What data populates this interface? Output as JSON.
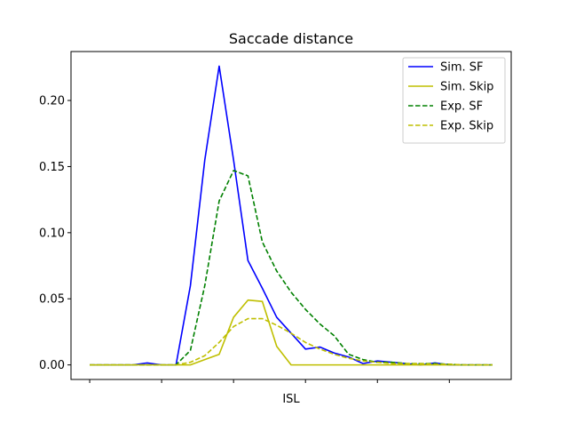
{
  "chart_data": {
    "type": "line",
    "title": "Saccade distance",
    "xlabel": "ISL",
    "ylabel": "",
    "x": [
      0,
      1,
      2,
      3,
      4,
      5,
      6,
      7,
      8,
      9,
      10,
      11,
      12,
      13,
      14,
      15,
      16,
      17,
      18,
      19,
      20,
      21,
      22,
      23,
      24,
      25,
      26,
      27,
      28
    ],
    "xlim": [
      -1.3,
      29.3
    ],
    "ylim": [
      -0.011,
      0.237
    ],
    "yticks": [
      0.0,
      0.05,
      0.1,
      0.15,
      0.2
    ],
    "ytick_labels": [
      "0.00",
      "0.05",
      "0.10",
      "0.15",
      "0.20"
    ],
    "xticks": [
      0,
      5,
      10,
      15,
      20,
      25
    ],
    "xtick_labels": [
      "",
      "",
      "",
      "",
      "",
      ""
    ],
    "grid": false,
    "legend": "top-right",
    "series": [
      {
        "name": "Sim. SF",
        "color": "#0000ff",
        "dash": "solid",
        "values": [
          0,
          0,
          0,
          0,
          0.0015,
          0,
          0,
          0.06,
          0.155,
          0.226,
          0.155,
          0.079,
          0.058,
          0.036,
          0.024,
          0.012,
          0.0135,
          0.009,
          0.006,
          0.001,
          0.003,
          0.002,
          0.001,
          0,
          0.0015,
          0,
          0,
          0,
          0
        ]
      },
      {
        "name": "Sim. Skip",
        "color": "#bfbf00",
        "dash": "solid",
        "values": [
          0,
          0,
          0,
          0,
          0,
          0,
          0,
          0,
          0.004,
          0.008,
          0.036,
          0.049,
          0.048,
          0.014,
          0,
          0,
          0,
          0,
          0,
          0,
          0,
          0,
          0,
          0,
          0,
          0,
          0,
          0,
          0
        ]
      },
      {
        "name": "Exp. SF",
        "color": "#008000",
        "dash": "dashed",
        "values": [
          0,
          0,
          0,
          0,
          0,
          0,
          0,
          0.011,
          0.06,
          0.124,
          0.147,
          0.143,
          0.093,
          0.071,
          0.055,
          0.042,
          0.031,
          0.022,
          0.008,
          0.004,
          0.002,
          0.002,
          0.001,
          0.001,
          0.001,
          0.0005,
          0,
          0,
          0
        ]
      },
      {
        "name": "Exp. Skip",
        "color": "#bfbf00",
        "dash": "dashed",
        "values": [
          0,
          0,
          0,
          0,
          0,
          0,
          0,
          0.002,
          0.007,
          0.017,
          0.029,
          0.035,
          0.035,
          0.03,
          0.024,
          0.017,
          0.012,
          0.008,
          0.005,
          0.003,
          0.002,
          0.001,
          0.001,
          0.001,
          0.0005,
          0.0005,
          0,
          0,
          0
        ]
      }
    ]
  }
}
